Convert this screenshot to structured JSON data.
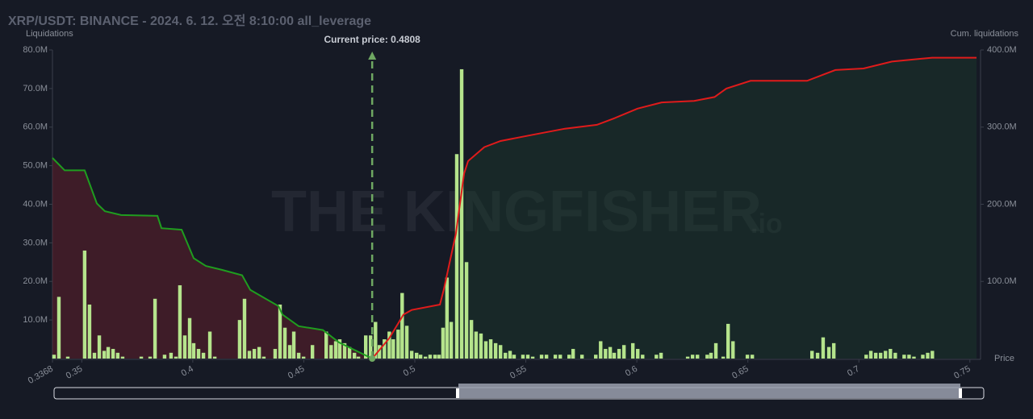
{
  "chart_data": {
    "type": "bar",
    "title": "XRP/USDT: BINANCE - 2024. 6. 12. 오전 8:10:00 all_leverage",
    "y_label": "Liquidations",
    "y2_label": "Cum. liquidations",
    "x_label": "Price",
    "watermark": "THE KINGFISHER",
    "watermark_suffix": ".io",
    "annotation": {
      "text": "Current price: 0.4808",
      "x": 0.4808,
      "color": "#6fa862"
    },
    "xlim": [
      0.3368,
      0.7548
    ],
    "xticks": [
      0.3368,
      0.35,
      0.4,
      0.45,
      0.5,
      0.55,
      0.6,
      0.65,
      0.7,
      0.75
    ],
    "ylim": [
      0,
      80
    ],
    "yticks": [
      {
        "value": 10,
        "label": "10.0M"
      },
      {
        "value": 20,
        "label": "20.0M"
      },
      {
        "value": 30,
        "label": "30.0M"
      },
      {
        "value": 40,
        "label": "40.0M"
      },
      {
        "value": 50,
        "label": "50.0M"
      },
      {
        "value": 60,
        "label": "60.0M"
      },
      {
        "value": 70,
        "label": "70.0M"
      },
      {
        "value": 80,
        "label": "80.0M"
      }
    ],
    "y2lim": [
      0,
      400
    ],
    "y2ticks": [
      {
        "value": 100,
        "label": "100.0M"
      },
      {
        "value": 200,
        "label": "200.0M"
      },
      {
        "value": 300,
        "label": "300.0M"
      },
      {
        "value": 400,
        "label": "400.0M"
      }
    ],
    "color": "#b5e48c",
    "x": [
      0.3375,
      0.3397,
      0.3437,
      0.3513,
      0.3535,
      0.3557,
      0.3579,
      0.3601,
      0.3619,
      0.3641,
      0.3662,
      0.3684,
      0.3768,
      0.3808,
      0.383,
      0.3873,
      0.3902,
      0.3924,
      0.3942,
      0.3964,
      0.3986,
      0.4004,
      0.4026,
      0.4048,
      0.4077,
      0.4099,
      0.4211,
      0.4233,
      0.4255,
      0.4277,
      0.4299,
      0.432,
      0.4371,
      0.4393,
      0.4415,
      0.4437,
      0.4455,
      0.4477,
      0.4499,
      0.4539,
      0.4601,
      0.4623,
      0.4644,
      0.4662,
      0.4684,
      0.4706,
      0.4728,
      0.4746,
      0.4779,
      0.4801,
      0.4823,
      0.4841,
      0.4863,
      0.4885,
      0.4903,
      0.4925,
      0.4943,
      0.4964,
      0.4986,
      0.5008,
      0.5026,
      0.5048,
      0.5069,
      0.5091,
      0.5109,
      0.5127,
      0.5145,
      0.5164,
      0.5189,
      0.5211,
      0.5233,
      0.5255,
      0.5276,
      0.5298,
      0.532,
      0.5342,
      0.5364,
      0.5386,
      0.5408,
      0.5429,
      0.5447,
      0.5487,
      0.5509,
      0.5531,
      0.5571,
      0.5593,
      0.5633,
      0.5655,
      0.5695,
      0.5713,
      0.5753,
      0.5815,
      0.5837,
      0.5859,
      0.588,
      0.5898,
      0.592,
      0.5942,
      0.5982,
      0.6004,
      0.6026,
      0.6088,
      0.6109,
      0.6229,
      0.6251,
      0.6273,
      0.6317,
      0.6334,
      0.6356,
      0.6389,
      0.6411,
      0.6433,
      0.6498,
      0.652,
      0.6789,
      0.6814,
      0.6839,
      0.6865,
      0.6887,
      0.7033,
      0.7054,
      0.7076,
      0.7098,
      0.712,
      0.7142,
      0.7164,
      0.7204,
      0.7226,
      0.7248,
      0.7288,
      0.731,
      0.7331
    ],
    "values": [
      1,
      16,
      0.5,
      28,
      14,
      1.5,
      6,
      2,
      3,
      2.5,
      1.5,
      0.5,
      0.5,
      0.5,
      15.5,
      1,
      1.5,
      0.5,
      19,
      6,
      10.5,
      4,
      2.5,
      1.5,
      7,
      0.5,
      10,
      15.5,
      2,
      2.5,
      3,
      0.5,
      2.5,
      14,
      8,
      3.5,
      7,
      1.5,
      0.5,
      3.5,
      7,
      3.5,
      4.5,
      5,
      4,
      3,
      1.5,
      0.5,
      6,
      6,
      9.5,
      3.5,
      5,
      7,
      5,
      7.5,
      17,
      8.5,
      2,
      1.5,
      1,
      0.5,
      1,
      1,
      1,
      8,
      21,
      9.5,
      53,
      75,
      25,
      10,
      7,
      6.5,
      4.5,
      5,
      4,
      3.5,
      1.5,
      2,
      1,
      1,
      1,
      0.5,
      1,
      1,
      1,
      1,
      1,
      2.5,
      1,
      1,
      4.5,
      2.5,
      3,
      1.5,
      2.5,
      3.5,
      4,
      2.5,
      1,
      1,
      1.5,
      0.5,
      1,
      1,
      1,
      1.5,
      4,
      0.5,
      9,
      4.5,
      1,
      1,
      2,
      1.5,
      5.5,
      3,
      4,
      1,
      2,
      1.5,
      1.5,
      2,
      2.5,
      1.5,
      1,
      1,
      0.5,
      1,
      1.5,
      2
    ],
    "lines": [
      {
        "axis": "y2",
        "color": "#1f9d1f",
        "fill": "rgba(110,30,45,0.45)",
        "x": [
          0.3368,
          0.3423,
          0.3513,
          0.3568,
          0.3604,
          0.3677,
          0.3841,
          0.3859,
          0.395,
          0.4004,
          0.4059,
          0.4131,
          0.4222,
          0.4259,
          0.4386,
          0.4404,
          0.4477,
          0.4586,
          0.4658,
          0.4808
        ],
        "values": [
          260,
          244,
          244,
          201,
          191,
          186,
          185,
          169,
          167,
          130,
          120,
          115,
          108,
          89,
          68,
          57,
          42,
          37,
          21,
          0
        ]
      },
      {
        "axis": "y2",
        "color": "#e01b1b",
        "fill": "rgba(30,70,45,0.35)",
        "x": [
          0.4808,
          0.4884,
          0.4949,
          0.4986,
          0.5113,
          0.513,
          0.5185,
          0.5222,
          0.524,
          0.5313,
          0.5386,
          0.553,
          0.5676,
          0.582,
          0.5895,
          0.6003,
          0.6112,
          0.6258,
          0.635,
          0.6403,
          0.6512,
          0.6767,
          0.684,
          0.6894,
          0.7021,
          0.7149,
          0.733,
          0.753
        ],
        "values": [
          0,
          26,
          57,
          63,
          70,
          89,
          162,
          240,
          256,
          274,
          282,
          290,
          298,
          303,
          311,
          324,
          332,
          334,
          339,
          350,
          360,
          360,
          368,
          374,
          376,
          385,
          390,
          390
        ]
      }
    ]
  }
}
